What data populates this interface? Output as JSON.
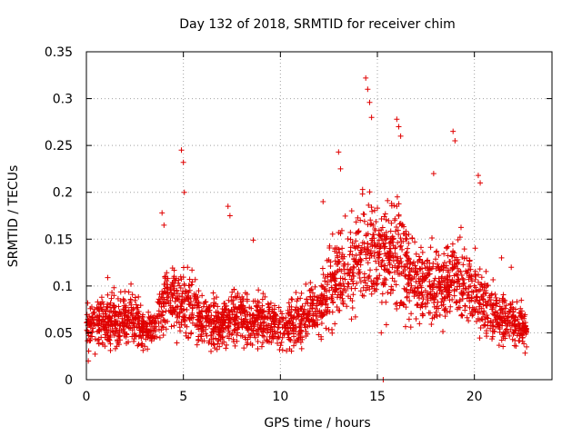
{
  "chart_data": {
    "type": "scatter",
    "title": "Day 132 of 2018, SRMTID for receiver chim",
    "xlabel": "GPS time / hours",
    "ylabel": "SRMTID / TECUs",
    "xlim": [
      0,
      24
    ],
    "ylim": [
      0,
      0.35
    ],
    "xticks": [
      0,
      5,
      10,
      15,
      20
    ],
    "xtick_labels": [
      "0",
      "5",
      "10",
      "15",
      "20"
    ],
    "yticks": [
      0,
      0.05,
      0.1,
      0.15,
      0.2,
      0.25,
      0.3,
      0.35
    ],
    "ytick_labels": [
      "0",
      "0.05",
      "0.1",
      "0.15",
      "0.2",
      "0.25",
      "0.3",
      "0.35"
    ],
    "grid": true,
    "marker": "+",
    "series": [
      {
        "name": "SRMTID",
        "color": "#e00000",
        "envelope": [
          [
            0.0,
            0.055
          ],
          [
            0.5,
            0.06
          ],
          [
            1.0,
            0.065
          ],
          [
            1.5,
            0.065
          ],
          [
            2.0,
            0.065
          ],
          [
            2.5,
            0.065
          ],
          [
            3.0,
            0.05
          ],
          [
            3.5,
            0.055
          ],
          [
            4.0,
            0.08
          ],
          [
            4.5,
            0.09
          ],
          [
            5.0,
            0.085
          ],
          [
            5.5,
            0.08
          ],
          [
            6.0,
            0.065
          ],
          [
            6.5,
            0.06
          ],
          [
            7.0,
            0.055
          ],
          [
            7.5,
            0.07
          ],
          [
            8.0,
            0.065
          ],
          [
            8.5,
            0.06
          ],
          [
            9.0,
            0.065
          ],
          [
            9.5,
            0.06
          ],
          [
            10.0,
            0.055
          ],
          [
            10.5,
            0.06
          ],
          [
            11.0,
            0.065
          ],
          [
            11.5,
            0.07
          ],
          [
            12.0,
            0.075
          ],
          [
            12.5,
            0.095
          ],
          [
            13.0,
            0.11
          ],
          [
            13.5,
            0.12
          ],
          [
            14.0,
            0.135
          ],
          [
            14.5,
            0.14
          ],
          [
            15.0,
            0.13
          ],
          [
            15.5,
            0.13
          ],
          [
            16.0,
            0.14
          ],
          [
            16.5,
            0.12
          ],
          [
            17.0,
            0.1
          ],
          [
            17.5,
            0.1
          ],
          [
            18.0,
            0.105
          ],
          [
            18.5,
            0.1
          ],
          [
            19.0,
            0.11
          ],
          [
            19.5,
            0.1
          ],
          [
            20.0,
            0.095
          ],
          [
            20.5,
            0.08
          ],
          [
            21.0,
            0.07
          ],
          [
            21.5,
            0.065
          ],
          [
            22.0,
            0.06
          ],
          [
            22.7,
            0.055
          ]
        ],
        "peaks": [
          [
            3.9,
            0.178
          ],
          [
            4.0,
            0.165
          ],
          [
            4.9,
            0.245
          ],
          [
            5.0,
            0.232
          ],
          [
            5.05,
            0.2
          ],
          [
            7.3,
            0.185
          ],
          [
            7.4,
            0.175
          ],
          [
            8.6,
            0.149
          ],
          [
            12.2,
            0.19
          ],
          [
            13.0,
            0.243
          ],
          [
            13.1,
            0.225
          ],
          [
            14.4,
            0.322
          ],
          [
            14.5,
            0.31
          ],
          [
            14.6,
            0.296
          ],
          [
            14.7,
            0.28
          ],
          [
            15.2,
            0.05
          ],
          [
            15.3,
            0.0
          ],
          [
            16.0,
            0.278
          ],
          [
            16.1,
            0.27
          ],
          [
            16.2,
            0.26
          ],
          [
            17.9,
            0.22
          ],
          [
            18.9,
            0.265
          ],
          [
            19.0,
            0.255
          ],
          [
            20.2,
            0.218
          ],
          [
            20.3,
            0.21
          ],
          [
            21.4,
            0.13
          ],
          [
            21.9,
            0.12
          ],
          [
            1.1,
            0.109
          ],
          [
            2.3,
            0.102
          ],
          [
            0.1,
            0.02
          ]
        ],
        "count": 2600
      }
    ]
  }
}
